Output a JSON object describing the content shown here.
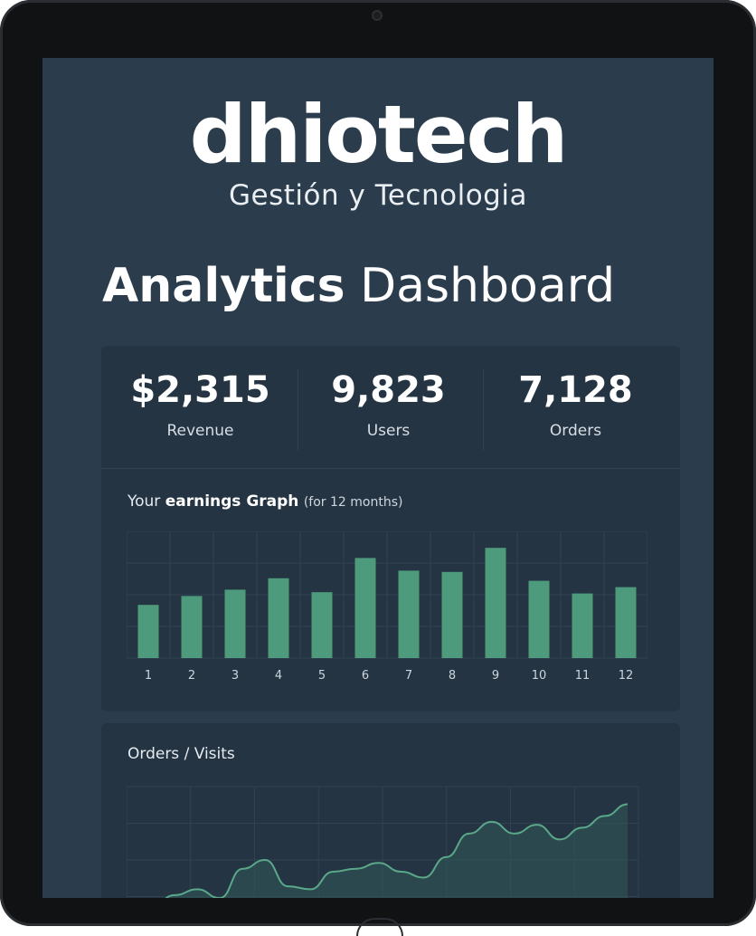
{
  "brand": {
    "name": "dhiotech",
    "tagline": "Gestión y Tecnologia"
  },
  "page": {
    "title_bold": "Analytics",
    "title_rest": "Dashboard"
  },
  "stats": [
    {
      "value": "$2,315",
      "label": "Revenue"
    },
    {
      "value": "9,823",
      "label": "Users"
    },
    {
      "value": "7,128",
      "label": "Orders"
    }
  ],
  "earnings": {
    "title_prefix": "Your",
    "title_bold": "earnings Graph",
    "subtitle": "(for 12 months)"
  },
  "orders_visits": {
    "title": "Orders / Visits"
  },
  "colors": {
    "bar": "#4e9a7c",
    "line": "#5aa889",
    "screen": "#2b3c4c",
    "card": "#243443"
  },
  "chart_data": [
    {
      "type": "bar",
      "categories": [
        "1",
        "2",
        "3",
        "4",
        "5",
        "6",
        "7",
        "8",
        "9",
        "10",
        "11",
        "12"
      ],
      "values": [
        42,
        49,
        54,
        63,
        52,
        79,
        69,
        68,
        87,
        61,
        51,
        56
      ],
      "ylim": [
        0,
        100
      ],
      "grid": true
    },
    {
      "type": "area",
      "x": [
        1,
        2,
        3,
        4,
        5,
        6,
        7,
        8,
        9,
        10,
        11,
        12,
        13,
        14,
        15,
        16,
        17,
        18,
        19,
        20,
        21,
        22
      ],
      "values": [
        18,
        26,
        30,
        24,
        44,
        50,
        32,
        30,
        42,
        44,
        48,
        42,
        38,
        52,
        68,
        76,
        68,
        74,
        64,
        72,
        80,
        88
      ],
      "ylim": [
        0,
        100
      ],
      "grid": true
    }
  ]
}
